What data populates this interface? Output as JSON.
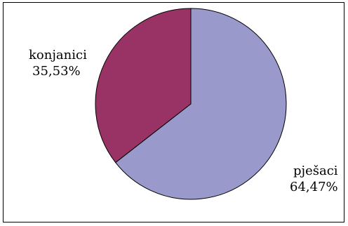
{
  "chart_data": {
    "type": "pie",
    "title": "",
    "slices": [
      {
        "label": "pješaci",
        "value": 64.47,
        "value_label": "64,47%",
        "color": "#9999cc"
      },
      {
        "label": "konjanici",
        "value": 35.53,
        "value_label": "35,53%",
        "color": "#993366"
      }
    ],
    "start_angle_deg": 0,
    "direction": "clockwise",
    "legend": "none",
    "edge_color": "#000000"
  }
}
